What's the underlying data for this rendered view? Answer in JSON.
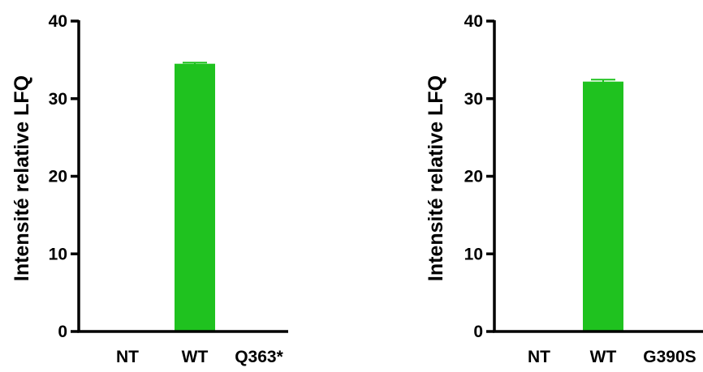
{
  "chart_data": [
    {
      "type": "bar",
      "ylabel": "Intensité relative LFQ",
      "xlabel": "",
      "categories": [
        "NT",
        "WT",
        "Q363*"
      ],
      "values": [
        0,
        34.5,
        0
      ],
      "errors": [
        0,
        0.15,
        0
      ],
      "ylim": [
        0,
        40
      ],
      "yticks": [
        "0",
        "10",
        "20",
        "30",
        "40"
      ],
      "bar_color": "#1fc21f",
      "grid": false
    },
    {
      "type": "bar",
      "ylabel": "Intensité relative LFQ",
      "xlabel": "",
      "categories": [
        "NT",
        "WT",
        "G390S"
      ],
      "values": [
        0,
        32.2,
        0
      ],
      "errors": [
        0,
        0.25,
        0
      ],
      "ylim": [
        0,
        40
      ],
      "yticks": [
        "0",
        "10",
        "20",
        "30",
        "40"
      ],
      "bar_color": "#1fc21f",
      "grid": false
    }
  ]
}
